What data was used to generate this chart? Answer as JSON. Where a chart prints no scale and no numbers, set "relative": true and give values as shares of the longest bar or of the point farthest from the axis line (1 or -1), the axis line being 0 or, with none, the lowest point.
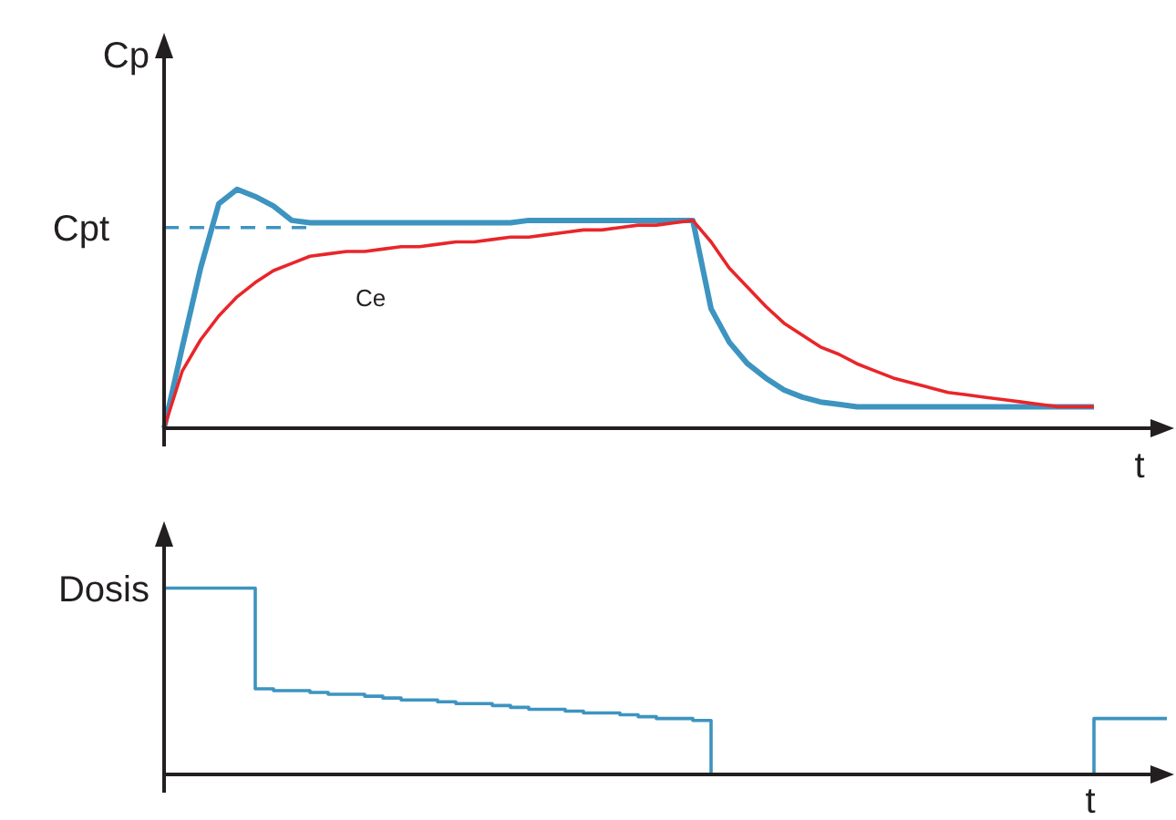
{
  "chart_data": [
    {
      "type": "line",
      "xlabel": "t",
      "ylabel": "Cp",
      "relative": true,
      "categories": [
        null,
        null,
        null,
        null,
        null,
        null,
        null,
        null,
        null,
        null,
        null,
        null,
        null,
        null,
        null,
        null,
        null,
        null,
        null,
        null,
        null,
        null,
        null,
        null,
        null,
        null,
        null,
        null,
        null,
        null,
        null,
        null,
        null,
        null,
        null,
        null,
        null,
        null,
        null,
        null,
        null,
        null,
        null,
        null,
        null,
        null,
        null,
        null,
        null,
        null,
        null,
        null
      ],
      "series": [
        {
          "color": "#3d94c0",
          "values": [
            0,
            0.34,
            0.67,
            0.94,
            1.0,
            0.97,
            0.93,
            0.87,
            0.86,
            0.86,
            0.86,
            0.86,
            0.86,
            0.86,
            0.86,
            0.86,
            0.86,
            0.86,
            0.86,
            0.86,
            0.87,
            0.87,
            0.87,
            0.87,
            0.87,
            0.87,
            0.87,
            0.87,
            0.87,
            0.87,
            0.5,
            0.36,
            0.27,
            0.21,
            0.16,
            0.13,
            0.11,
            0.1,
            0.09,
            0.09,
            0.09,
            0.09,
            0.09,
            0.09,
            0.09,
            0.09,
            0.09,
            0.09,
            0.09,
            0.09,
            0.09,
            0.09
          ]
        },
        {
          "name": "Ce",
          "color": "#e8262a",
          "values": [
            0,
            0.24,
            0.37,
            0.47,
            0.55,
            0.61,
            0.66,
            0.69,
            0.72,
            0.73,
            0.74,
            0.74,
            0.75,
            0.76,
            0.76,
            0.77,
            0.78,
            0.78,
            0.79,
            0.8,
            0.8,
            0.81,
            0.82,
            0.83,
            0.83,
            0.84,
            0.85,
            0.85,
            0.86,
            0.87,
            0.78,
            0.67,
            0.59,
            0.51,
            0.44,
            0.39,
            0.34,
            0.31,
            0.27,
            0.24,
            0.21,
            0.19,
            0.17,
            0.15,
            0.14,
            0.13,
            0.12,
            0.11,
            0.1,
            0.09,
            0.09,
            0.09
          ]
        }
      ],
      "ref_lines": [
        {
          "axis": "y",
          "value": 0.84,
          "label": "Cpt",
          "color": "#3d94c0",
          "line_style": "dashed"
        }
      ]
    },
    {
      "type": "step",
      "xlabel": "t",
      "ylabel": "Dosis",
      "relative": true,
      "categories": [
        null,
        null,
        null,
        null,
        null,
        null,
        null,
        null,
        null,
        null,
        null,
        null,
        null,
        null,
        null,
        null,
        null,
        null,
        null,
        null,
        null,
        null,
        null,
        null,
        null,
        null,
        null,
        null,
        null,
        null,
        null,
        null,
        null,
        null,
        null,
        null,
        null,
        null,
        null,
        null,
        null,
        null,
        null,
        null,
        null,
        null,
        null,
        null,
        null,
        null,
        null,
        null,
        null,
        null,
        null,
        null
      ],
      "series": [
        {
          "color": "#3d94c0",
          "values": [
            1,
            1,
            1,
            1,
            1,
            0.46,
            0.45,
            0.45,
            0.44,
            0.43,
            0.43,
            0.42,
            0.41,
            0.4,
            0.4,
            0.39,
            0.38,
            0.38,
            0.37,
            0.36,
            0.35,
            0.35,
            0.34,
            0.33,
            0.33,
            0.32,
            0.31,
            0.3,
            0.3,
            0.29,
            0,
            0,
            0,
            0,
            0,
            0,
            0,
            0,
            0,
            0,
            0,
            0,
            0,
            0,
            0,
            0,
            0,
            0,
            0,
            0,
            0,
            0.3,
            0.3,
            0.3,
            0.3,
            0.3
          ]
        }
      ]
    }
  ]
}
